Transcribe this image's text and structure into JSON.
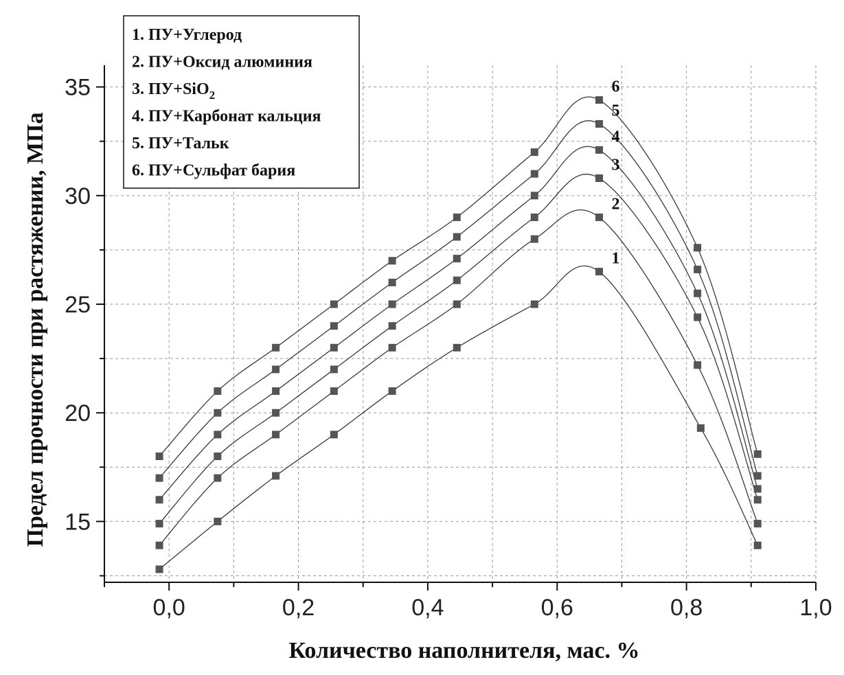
{
  "chart_data": {
    "type": "line",
    "xlabel": "Количество наполнителя, мас. %",
    "ylabel": "Предел прочности при растяжении, МПа",
    "xlim": [
      -0.1,
      1.0
    ],
    "ylim": [
      12.2,
      36.0
    ],
    "xticks": [
      0.0,
      0.2,
      0.4,
      0.6,
      0.8,
      1.0
    ],
    "xtick_labels": [
      "0,0",
      "0,2",
      "0,4",
      "0,6",
      "0,8",
      "1,0"
    ],
    "yticks": [
      15,
      20,
      25,
      30,
      35
    ],
    "ytick_labels": [
      "15",
      "20",
      "25",
      "30",
      "35"
    ],
    "grid": true,
    "legend_position": "top-left",
    "x": [
      -0.015,
      0.075,
      0.165,
      0.255,
      0.345,
      0.445,
      0.565,
      0.665,
      0.82,
      0.91
    ],
    "series": [
      {
        "name": "1.  ПУ+Углерод",
        "label": "1",
        "values": [
          12.8,
          15.0,
          17.1,
          19.0,
          21.0,
          23.0,
          25.0,
          26.5,
          19.3,
          13.9
        ],
        "x": [
          -0.015,
          0.075,
          0.165,
          0.255,
          0.345,
          0.445,
          0.565,
          0.665,
          0.822,
          0.91
        ]
      },
      {
        "name": "2.  ПУ+Оксид алюминия",
        "label": "2",
        "values": [
          13.9,
          17.0,
          19.0,
          21.0,
          23.0,
          25.0,
          28.0,
          29.0,
          22.2,
          14.9
        ],
        "x": [
          -0.015,
          0.075,
          0.165,
          0.255,
          0.345,
          0.445,
          0.565,
          0.665,
          0.817,
          0.91
        ]
      },
      {
        "name_prefix": "3.  ПУ+SiO",
        "name_sub": "2",
        "label": "3",
        "values": [
          14.9,
          18.0,
          20.0,
          22.0,
          24.0,
          26.1,
          29.0,
          30.8,
          24.4,
          16.0
        ],
        "x": [
          -0.015,
          0.075,
          0.165,
          0.255,
          0.345,
          0.445,
          0.565,
          0.665,
          0.817,
          0.91
        ]
      },
      {
        "name": "4.  ПУ+Карбонат кальция",
        "label": "4",
        "values": [
          16.0,
          19.0,
          21.0,
          23.0,
          25.0,
          27.1,
          30.0,
          32.1,
          25.5,
          16.5
        ],
        "x": [
          -0.015,
          0.075,
          0.165,
          0.255,
          0.345,
          0.445,
          0.565,
          0.665,
          0.817,
          0.91
        ]
      },
      {
        "name": "5.  ПУ+Тальк",
        "label": "5",
        "values": [
          17.0,
          20.0,
          22.0,
          24.0,
          26.0,
          28.1,
          31.0,
          33.3,
          26.6,
          17.1
        ],
        "x": [
          -0.015,
          0.075,
          0.165,
          0.255,
          0.345,
          0.445,
          0.565,
          0.665,
          0.817,
          0.91
        ]
      },
      {
        "name": "6.  ПУ+Сульфат бария",
        "label": "6",
        "values": [
          18.0,
          21.0,
          23.0,
          25.0,
          27.0,
          29.0,
          32.0,
          34.4,
          27.6,
          18.1
        ],
        "x": [
          -0.015,
          0.075,
          0.165,
          0.255,
          0.345,
          0.445,
          0.565,
          0.665,
          0.817,
          0.91
        ]
      }
    ]
  }
}
